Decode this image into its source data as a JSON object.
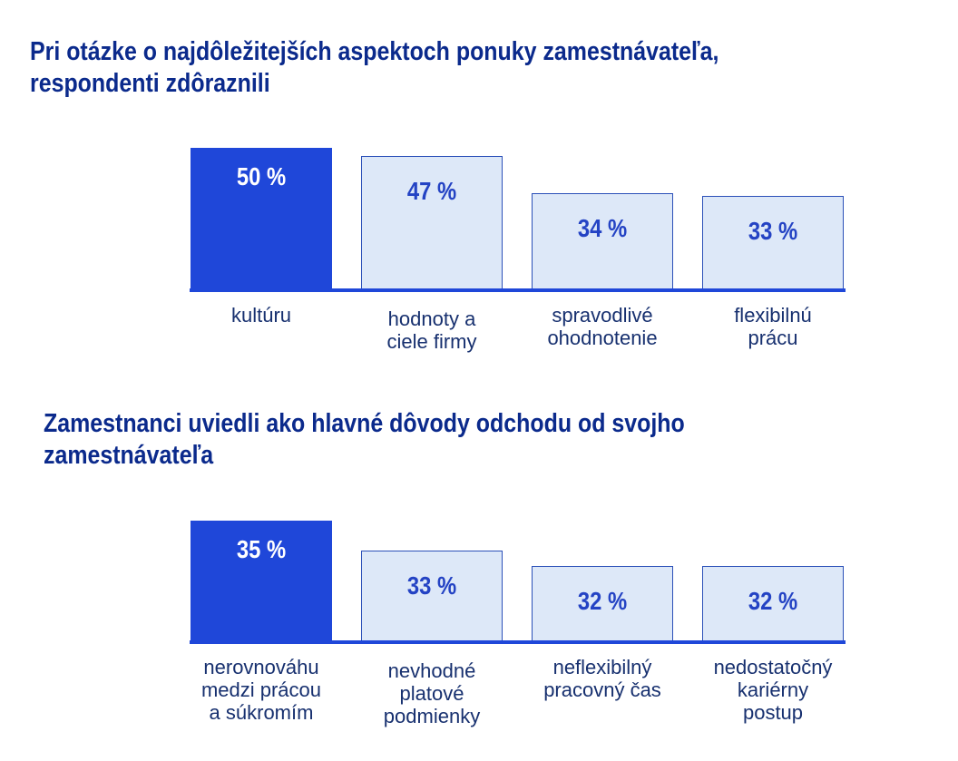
{
  "colors": {
    "highlight": "#1f47d9",
    "bar": "#dde8f8",
    "title": "#0b2a8c"
  },
  "chart_data": [
    {
      "type": "bar",
      "title": "Pri otázke o najdôležitejších aspektoch ponuky zamestnávateľa, respondenti zdôraznili",
      "title_lines": [
        "Pri otázke o najdôležitejších aspektoch ponuky zamestnávateľa,",
        "respondenti zdôraznili"
      ],
      "categories": [
        "kultúru",
        "hodnoty a\nciele firmy",
        "spravodlivé\nohodnotenie",
        "flexibilnú\nprácu"
      ],
      "values": [
        50,
        47,
        34,
        33
      ],
      "labels": [
        "50 %",
        "47 %",
        "34 %",
        "33 %"
      ],
      "ylim": [
        0,
        50
      ],
      "highlight_index": 0
    },
    {
      "type": "bar",
      "title": "Zamestnanci uviedli ako hlavné dôvody odchodu od svojho zamestnávateľa",
      "title_lines": [
        "Zamestnanci uviedli ako hlavné dôvody odchodu od svojho",
        "zamestnávateľa"
      ],
      "categories": [
        "nerovnováhu\nmedzi prácou\na súkromím",
        "nevhodné\nplatové\npodmienky",
        "neflexibilný\npracovný čas",
        "nedostatočný\nkariérny\npostup"
      ],
      "values": [
        35,
        33,
        32,
        32
      ],
      "labels": [
        "35 %",
        "33 %",
        "32 %",
        "32 %"
      ],
      "ylim": [
        27,
        35
      ],
      "highlight_index": 0
    }
  ]
}
